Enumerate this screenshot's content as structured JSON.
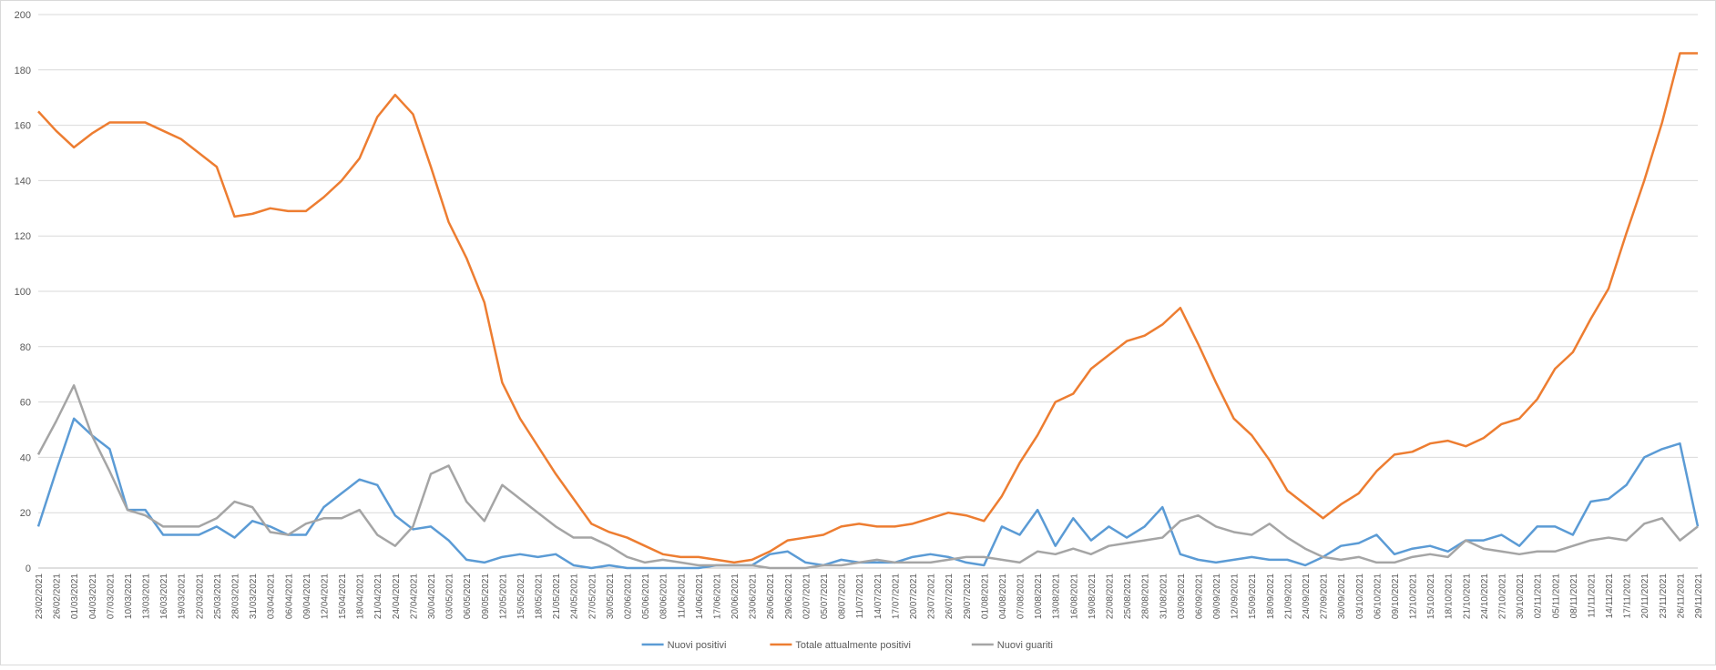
{
  "chart_data": {
    "type": "line",
    "categories": [
      "23/02/2021",
      "26/02/2021",
      "01/03/2021",
      "04/03/2021",
      "07/03/2021",
      "10/03/2021",
      "13/03/2021",
      "16/03/2021",
      "19/03/2021",
      "22/03/2021",
      "25/03/2021",
      "28/03/2021",
      "31/03/2021",
      "03/04/2021",
      "06/04/2021",
      "09/04/2021",
      "12/04/2021",
      "15/04/2021",
      "18/04/2021",
      "21/04/2021",
      "24/04/2021",
      "27/04/2021",
      "30/04/2021",
      "03/05/2021",
      "06/05/2021",
      "09/05/2021",
      "12/05/2021",
      "15/05/2021",
      "18/05/2021",
      "21/05/2021",
      "24/05/2021",
      "27/05/2021",
      "30/05/2021",
      "02/06/2021",
      "05/06/2021",
      "08/06/2021",
      "11/06/2021",
      "14/06/2021",
      "17/06/2021",
      "20/06/2021",
      "23/06/2021",
      "26/06/2021",
      "29/06/2021",
      "02/07/2021",
      "05/07/2021",
      "08/07/2021",
      "11/07/2021",
      "14/07/2021",
      "17/07/2021",
      "20/07/2021",
      "23/07/2021",
      "26/07/2021",
      "29/07/2021",
      "01/08/2021",
      "04/08/2021",
      "07/08/2021",
      "10/08/2021",
      "13/08/2021",
      "16/08/2021",
      "19/08/2021",
      "22/08/2021",
      "25/08/2021",
      "28/08/2021",
      "31/08/2021",
      "03/09/2021",
      "06/09/2021",
      "09/09/2021",
      "12/09/2021",
      "15/09/2021",
      "18/09/2021",
      "21/09/2021",
      "24/09/2021",
      "27/09/2021",
      "30/09/2021",
      "03/10/2021",
      "06/10/2021",
      "09/10/2021",
      "12/10/2021",
      "15/10/2021",
      "18/10/2021",
      "21/10/2021",
      "24/10/2021",
      "27/10/2021",
      "30/10/2021",
      "02/11/2021",
      "05/11/2021",
      "08/11/2021",
      "11/11/2021",
      "14/11/2021",
      "17/11/2021",
      "20/11/2021",
      "23/11/2021",
      "26/11/2021",
      "29/11/2021"
    ],
    "series": [
      {
        "name": "Nuovi positivi",
        "color": "#5b9bd5",
        "values": [
          15,
          35,
          54,
          48,
          43,
          21,
          21,
          12,
          12,
          12,
          15,
          11,
          17,
          15,
          12,
          12,
          22,
          27,
          32,
          30,
          19,
          14,
          15,
          10,
          3,
          2,
          4,
          5,
          4,
          5,
          1,
          0,
          1,
          0,
          0,
          0,
          0,
          0,
          1,
          1,
          1,
          5,
          6,
          2,
          1,
          3,
          2,
          2,
          2,
          4,
          5,
          4,
          2,
          1,
          15,
          12,
          21,
          8,
          18,
          10,
          15,
          11,
          15,
          22,
          5,
          3,
          2,
          3,
          4,
          3,
          3,
          1,
          4,
          8,
          9,
          12,
          5,
          7,
          8,
          6,
          10,
          10,
          12,
          8,
          15,
          15,
          12,
          24,
          25,
          30,
          40,
          43,
          45,
          15
        ]
      },
      {
        "name": "Totale attualmente positivi",
        "color": "#ed7d31",
        "values": [
          165,
          158,
          152,
          157,
          161,
          161,
          161,
          158,
          155,
          150,
          145,
          127,
          128,
          130,
          129,
          129,
          134,
          140,
          148,
          163,
          171,
          164,
          145,
          125,
          112,
          96,
          67,
          54,
          44,
          34,
          25,
          16,
          13,
          11,
          8,
          5,
          4,
          4,
          3,
          2,
          3,
          6,
          10,
          11,
          12,
          15,
          16,
          15,
          15,
          16,
          18,
          20,
          19,
          17,
          26,
          38,
          48,
          60,
          63,
          72,
          77,
          82,
          84,
          88,
          94,
          81,
          67,
          54,
          48,
          39,
          28,
          23,
          18,
          23,
          27,
          35,
          41,
          42,
          45,
          46,
          44,
          47,
          52,
          54,
          61,
          72,
          78,
          90,
          101,
          121,
          140,
          161,
          186,
          186
        ]
      },
      {
        "name": "Nuovi guariti",
        "color": "#a5a5a5",
        "values": [
          41,
          53,
          66,
          48,
          35,
          21,
          19,
          15,
          15,
          15,
          18,
          24,
          22,
          13,
          12,
          16,
          18,
          18,
          21,
          12,
          8,
          15,
          34,
          37,
          24,
          17,
          30,
          25,
          20,
          15,
          11,
          11,
          8,
          4,
          2,
          3,
          2,
          1,
          1,
          1,
          1,
          0,
          0,
          0,
          1,
          1,
          2,
          3,
          2,
          2,
          2,
          3,
          4,
          4,
          3,
          2,
          6,
          5,
          7,
          5,
          8,
          9,
          10,
          11,
          17,
          19,
          15,
          13,
          12,
          16,
          11,
          7,
          4,
          3,
          4,
          2,
          2,
          4,
          5,
          4,
          10,
          7,
          6,
          5,
          6,
          6,
          8,
          10,
          11,
          10,
          16,
          18,
          10,
          15
        ]
      }
    ],
    "ylim": [
      0,
      200
    ],
    "yticks": [
      0,
      20,
      40,
      60,
      80,
      100,
      120,
      140,
      160,
      180,
      200
    ],
    "grid": true,
    "legend": "bottom"
  }
}
